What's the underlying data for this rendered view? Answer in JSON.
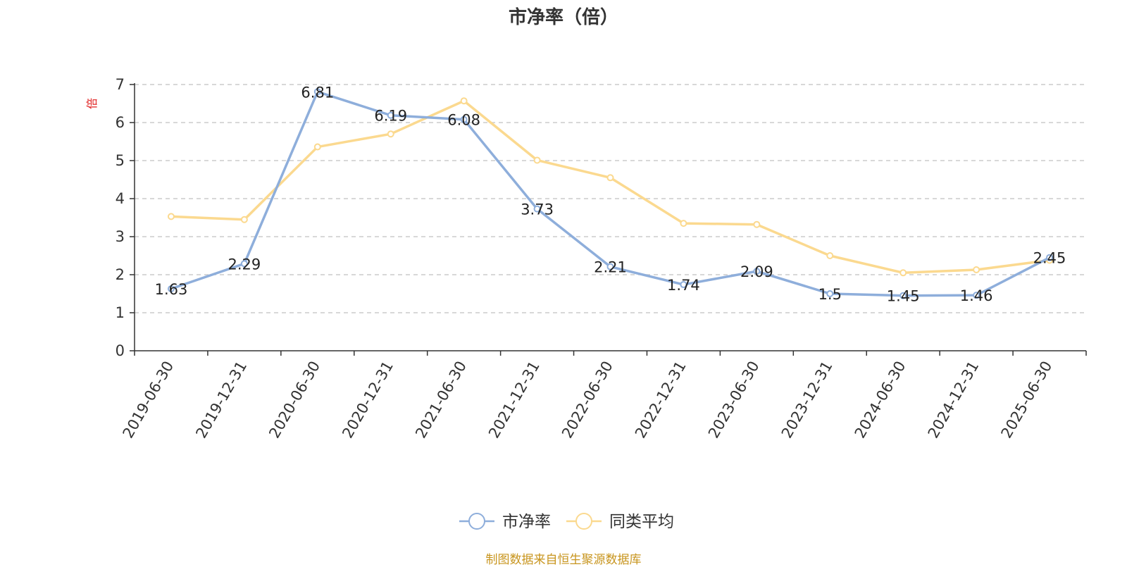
{
  "title": "市净率（倍）",
  "source_note": "制图数据来自恒生聚源数据库",
  "chart_data": {
    "type": "line",
    "title": "市净率（倍）",
    "ylabel": "倍",
    "xlabel": "",
    "ylim": [
      0,
      7
    ],
    "yticks": [
      0,
      1,
      2,
      3,
      4,
      5,
      6,
      7
    ],
    "grid": true,
    "legend_position": "bottom",
    "categories": [
      "2019-06-30",
      "2019-12-31",
      "2020-06-30",
      "2020-12-31",
      "2021-06-30",
      "2021-12-31",
      "2022-06-30",
      "2022-12-31",
      "2023-06-30",
      "2023-12-31",
      "2024-06-30",
      "2024-12-31",
      "2025-06-30"
    ],
    "series": [
      {
        "name": "市净率",
        "color": "#8eaedb",
        "show_labels": true,
        "values": [
          1.63,
          2.29,
          6.81,
          6.19,
          6.08,
          3.73,
          2.21,
          1.74,
          2.09,
          1.5,
          1.45,
          1.46,
          2.45
        ]
      },
      {
        "name": "同类平均",
        "color": "#fbd98f",
        "show_labels": false,
        "values": [
          3.53,
          3.45,
          5.36,
          5.7,
          6.57,
          5.01,
          4.55,
          3.35,
          3.32,
          2.5,
          2.05,
          2.13,
          2.38
        ]
      }
    ]
  }
}
